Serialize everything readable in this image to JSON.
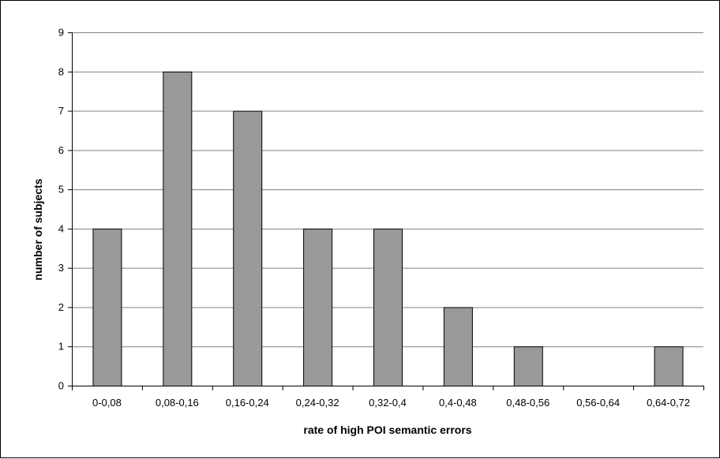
{
  "chart_data": {
    "type": "bar",
    "title": "",
    "xlabel": "rate of high POI semantic errors",
    "ylabel": "number of subjects",
    "categories": [
      "0-0,08",
      "0,08-0,16",
      "0,16-0,24",
      "0,24-0,32",
      "0,32-0,4",
      "0,4-0,48",
      "0,48-0,56",
      "0,56-0,64",
      "0,64-0,72"
    ],
    "values": [
      4,
      8,
      7,
      4,
      4,
      2,
      1,
      0,
      1
    ],
    "ylim": [
      0,
      9
    ],
    "yticks": [
      "0",
      "1",
      "2",
      "3",
      "4",
      "5",
      "6",
      "7",
      "8",
      "9"
    ],
    "grid": true,
    "bar_color": "#999999",
    "bar_edge_color": "#000000",
    "grid_color": "#808080"
  }
}
